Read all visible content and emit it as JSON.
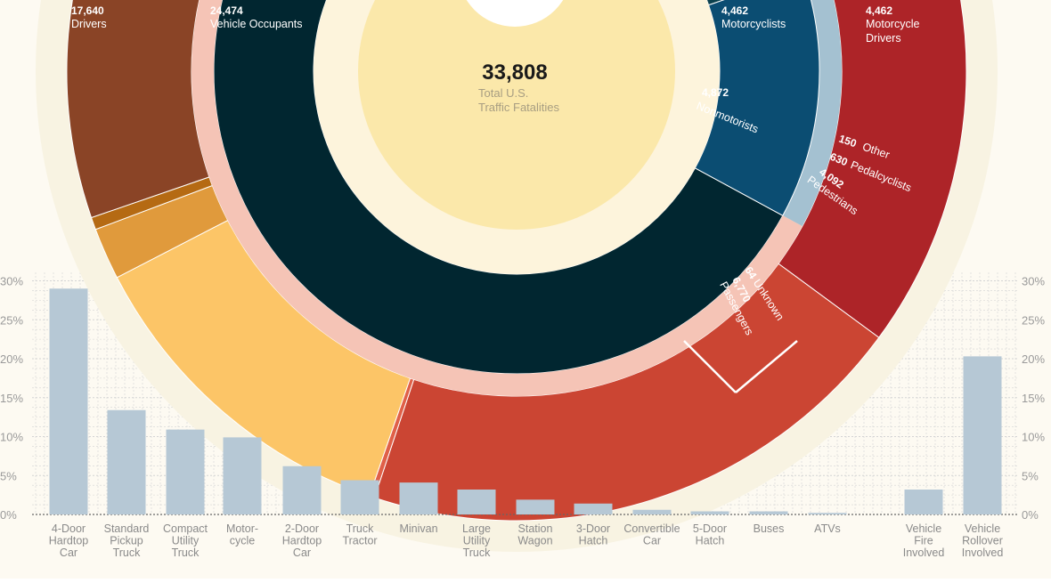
{
  "center": {
    "value": "33,808",
    "label_line1": "Total U.S.",
    "label_line2": "Traffic Fatalities"
  },
  "ring_labels": {
    "drivers": {
      "value": "17,640",
      "label": "Drivers"
    },
    "vehicle_occupants": {
      "value": "24,474",
      "label": "Vehicle Occupants"
    },
    "motorcyclists": {
      "value": "4,462",
      "label": "Motorcyclists"
    },
    "motorcycle_drivers": {
      "value": "4,462",
      "label_line1": "Motorcycle",
      "label_line2": "Drivers"
    },
    "nonmotorists": {
      "value": "4,872",
      "label": "Nonmotorists"
    },
    "other": {
      "value": "150",
      "label": "Other"
    },
    "pedalcyclists": {
      "value": "630",
      "label": "Pedalcyclists"
    },
    "pedestrians": {
      "value": "4,092",
      "label": "Pedestrians"
    },
    "unknown": {
      "value": "64",
      "label": "Unknown"
    },
    "passengers": {
      "value": "6,770",
      "label": "Passengers"
    }
  },
  "colors": {
    "page_bg": "#fdfaf2",
    "glow": "#f8f3e2",
    "drivers": "#ad2428",
    "passengers": "#cb4533",
    "unknown": "#e06048",
    "occupants_separator": "#f5c4b6",
    "vehicle_occupants": "#012630",
    "nonmotorists": "#0c414e",
    "motorcyclists": "#0b4d72",
    "motorcycle_drivers": "#8a4426",
    "motorcycle_gap": "#a4c1d1",
    "nonmotorist_separator": "#cfe3cc",
    "pedestrians": "#fcc567",
    "pedalcyclists": "#e09a3c",
    "other": "#b56a13",
    "inner_ring": "#fdf4dc",
    "center_disc": "#fbe8aa",
    "bars": "#b6c8d5",
    "grid": "#d4d4d4"
  },
  "chart_data": [
    {
      "type": "pie",
      "title": "",
      "total": 33808,
      "rings": [
        {
          "name": "Vehicle Occupants / Nonmotorists / Motorcyclists",
          "slices": [
            {
              "label": "Vehicle Occupants",
              "value": 24474
            },
            {
              "label": "Nonmotorists",
              "value": 4872
            },
            {
              "label": "Motorcyclists",
              "value": 4462
            }
          ]
        },
        {
          "name": "Drivers / Passengers / Unknown / Pedestrians / Pedalcyclists / Other / Motorcycle Drivers",
          "slices": [
            {
              "label": "Drivers",
              "value": 17640
            },
            {
              "label": "Passengers",
              "value": 6770
            },
            {
              "label": "Unknown",
              "value": 64
            },
            {
              "label": "Pedestrians",
              "value": 4092
            },
            {
              "label": "Pedalcyclists",
              "value": 630
            },
            {
              "label": "Other",
              "value": 150
            },
            {
              "label": "Motorcycle Drivers",
              "value": 4462
            }
          ]
        }
      ]
    },
    {
      "type": "bar",
      "title": "",
      "xlabel": "",
      "ylabel": "",
      "categories": [
        [
          "4-Door",
          "Hardtop",
          "Car"
        ],
        [
          "Standard",
          "Pickup",
          "Truck"
        ],
        [
          "Compact",
          "Utility",
          "Truck"
        ],
        [
          "Motor-",
          "cycle"
        ],
        [
          "2-Door",
          "Hardtop",
          "Car"
        ],
        [
          "Truck",
          "Tractor"
        ],
        [
          "Minivan"
        ],
        [
          "Large",
          "Utility",
          "Truck"
        ],
        [
          "Station",
          "Wagon"
        ],
        [
          "3-Door",
          "Hatch"
        ],
        [
          "Convertible",
          "Car"
        ],
        [
          "5-Door",
          "Hatch"
        ],
        [
          "Buses"
        ],
        [
          "ATVs"
        ],
        [
          "Vehicle",
          "Fire",
          "Involved"
        ],
        [
          "Vehicle",
          "Rollover",
          "Involved"
        ]
      ],
      "values": [
        29,
        13.4,
        10.9,
        9.9,
        6.2,
        4.4,
        4.1,
        3.2,
        1.9,
        1.4,
        0.6,
        0.4,
        0.4,
        0.2,
        3.2,
        20.3
      ],
      "ylim": [
        0,
        30
      ],
      "yticks": [
        "0%",
        "5%",
        "10%",
        "15%",
        "20%",
        "25%",
        "30%"
      ],
      "grid": true
    }
  ]
}
